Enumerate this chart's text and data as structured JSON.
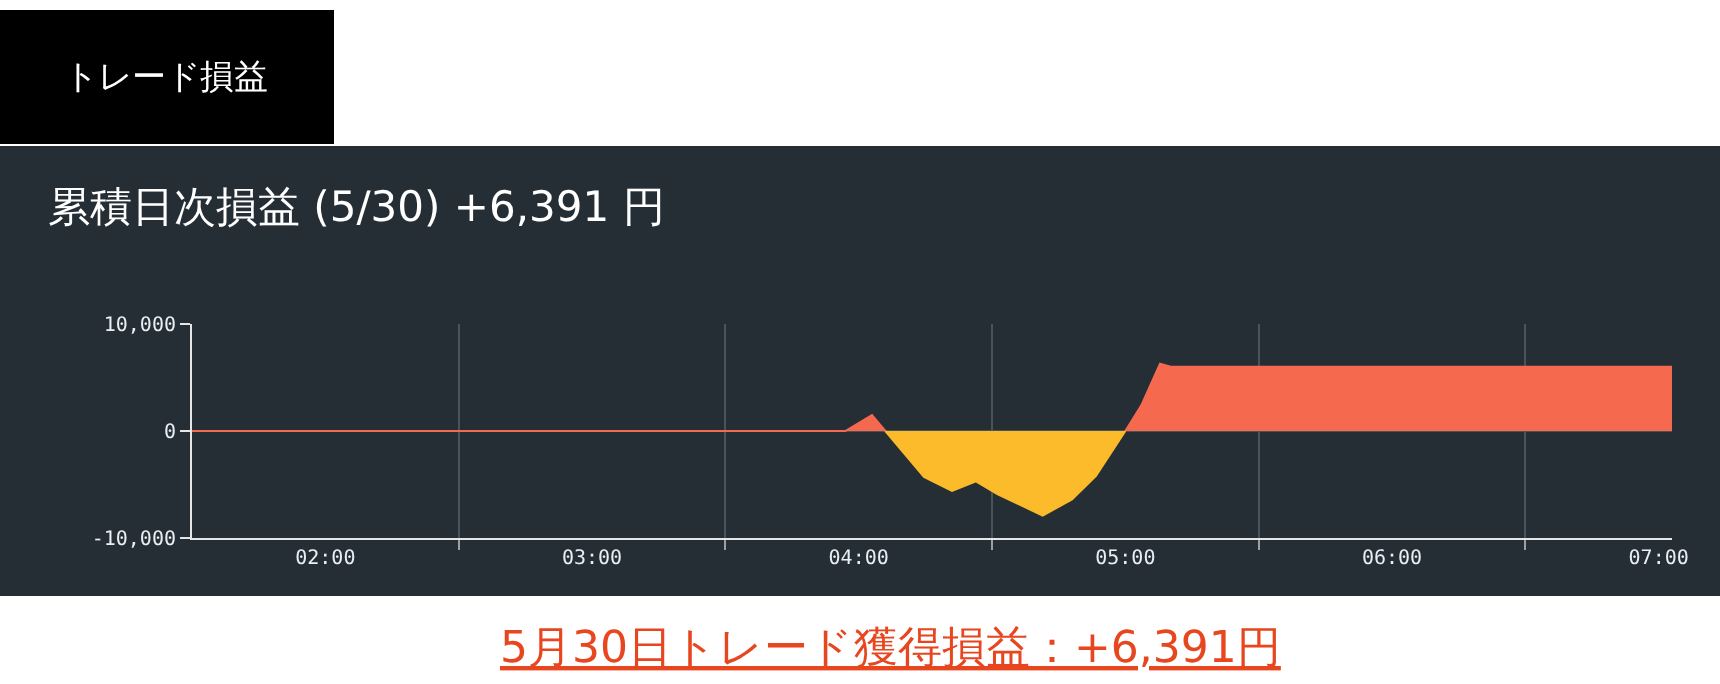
{
  "chart_data": {
    "type": "area",
    "title": "累積日次損益 (5/30) +6,391 円",
    "annotations": [
      "トレード損益",
      "5月30日トレード獲得損益：+6,391円"
    ],
    "series": [
      {
        "color": "#f56a4f",
        "x": [
          1.5,
          3.95,
          4.05,
          4.1,
          null,
          5.0,
          5.06,
          5.13,
          5.17,
          7.05
        ],
        "values": [
          0,
          0,
          1500,
          0,
          null,
          0,
          2400,
          6300,
          6000,
          6000
        ]
      },
      {
        "color": "#fbbb2a",
        "x": [
          4.1,
          4.245,
          4.35,
          4.44,
          4.52,
          4.69,
          4.8,
          4.89,
          5.0
        ],
        "values": [
          0,
          -4300,
          -5600,
          -4700,
          -5900,
          -7900,
          -6400,
          -4200,
          0
        ]
      }
    ],
    "xlim": [
      1.5,
      7.05
    ],
    "xticks": [
      {
        "value": 2,
        "label": "02:00"
      },
      {
        "value": 2.5,
        "label": null
      },
      {
        "value": 3,
        "label": "03:00"
      },
      {
        "value": 3.5,
        "label": null
      },
      {
        "value": 4,
        "label": "04:00"
      },
      {
        "value": 4.5,
        "label": null
      },
      {
        "value": 5,
        "label": "05:00"
      },
      {
        "value": 5.5,
        "label": null
      },
      {
        "value": 6,
        "label": "06:00"
      },
      {
        "value": 6.5,
        "label": null
      },
      {
        "value": 7,
        "label": "07:00"
      }
    ],
    "ylim": [
      -10000,
      10000
    ],
    "yticks": [
      {
        "value": -10000,
        "label": "-10,000"
      },
      0,
      {
        "value": 10000,
        "label": "10,000"
      }
    ],
    "grid": true
  }
}
